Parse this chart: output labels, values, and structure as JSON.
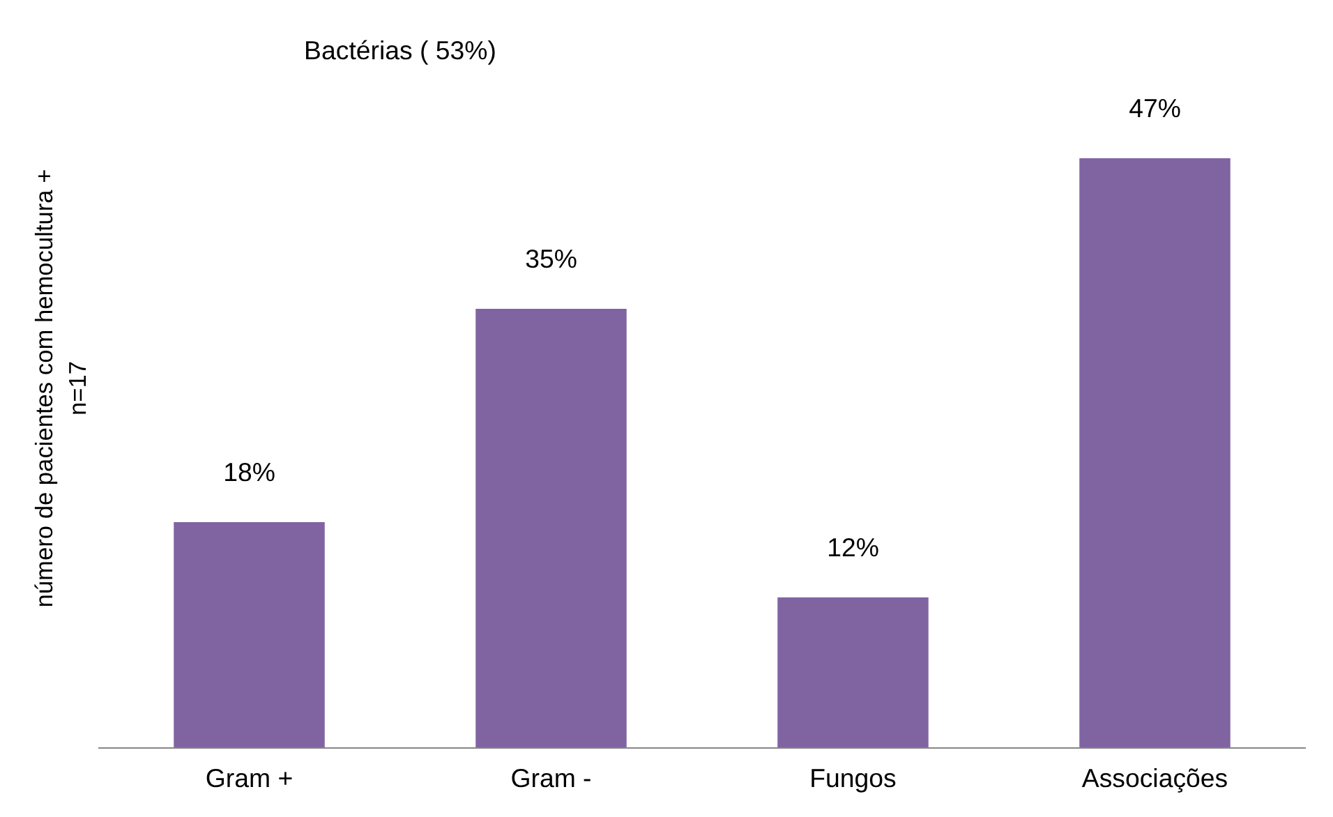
{
  "chart_data": {
    "type": "bar",
    "ylabel": "número de pacientes com hemocultura +\nn=17",
    "categories": [
      "Gram +",
      "Gram -",
      "Fungos",
      "Associações"
    ],
    "values": [
      18,
      35,
      12,
      47
    ],
    "value_labels": [
      "18%",
      "35%",
      "12%",
      "47%"
    ],
    "color": "#8064a2",
    "annotations": [
      "Bactérias ( 53%)"
    ]
  }
}
